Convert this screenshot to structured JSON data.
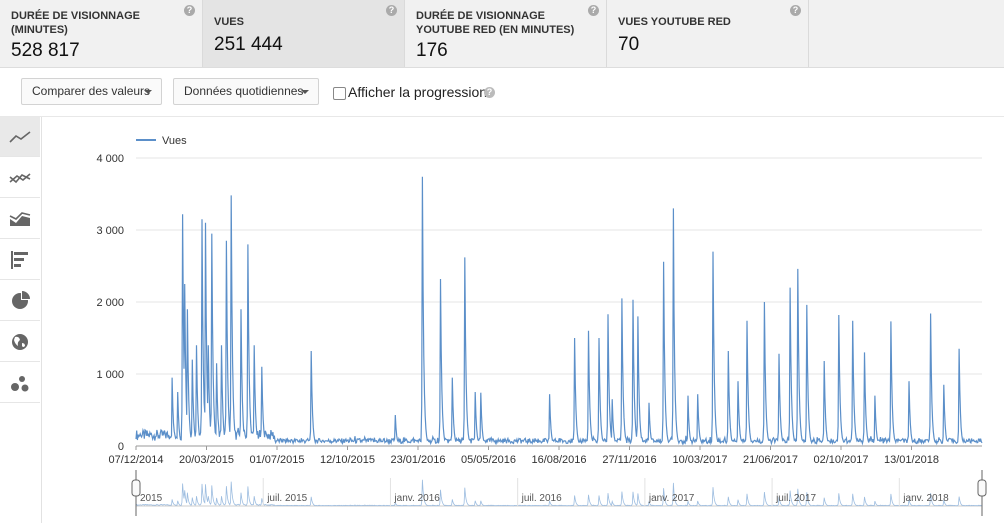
{
  "metrics": [
    {
      "label_line1": "DURÉE DE VISIONNAGE",
      "label_line2": "(MINUTES)",
      "value": "528 817"
    },
    {
      "label_line1": "VUES",
      "label_line2": "",
      "value": "251 444"
    },
    {
      "label_line1": "DURÉE DE VISIONNAGE",
      "label_line2": "YOUTUBE RED (EN MINUTES)",
      "value": "176"
    },
    {
      "label_line1": "VUES YOUTUBE RED",
      "label_line2": "",
      "value": "70"
    }
  ],
  "help_glyph": "?",
  "controls": {
    "compare_label": "Comparer des valeurs",
    "granularity_label": "Données quotidiennes",
    "progress_label": "Afficher la progression",
    "progress_checked": false
  },
  "side_icons": [
    "line-chart-icon",
    "multi-line-icon",
    "area-chart-icon",
    "bar-chart-icon",
    "pie-chart-icon",
    "globe-icon",
    "bubble-chart-icon"
  ],
  "colors": {
    "series": "#5b8fc9",
    "active_card": "#e4e4e4"
  },
  "chart_data": {
    "type": "line",
    "legend": "Vues",
    "ylim": [
      0,
      4000
    ],
    "yticks": [
      {
        "v": 0,
        "label": "0"
      },
      {
        "v": 1000,
        "label": "1 000"
      },
      {
        "v": 2000,
        "label": "2 000"
      },
      {
        "v": 3000,
        "label": "3 000"
      },
      {
        "v": 4000,
        "label": "4 000"
      }
    ],
    "xticks": [
      "07/12/2014",
      "20/03/2015",
      "01/07/2015",
      "12/10/2015",
      "23/01/2016",
      "05/05/2016",
      "16/08/2016",
      "27/11/2016",
      "10/03/2017",
      "21/06/2017",
      "02/10/2017",
      "13/01/2018"
    ],
    "x_start": "2014-12-07",
    "x_end": "2018-04-07",
    "baseline": 70,
    "peaks": [
      [
        "2015-01-28",
        950
      ],
      [
        "2015-02-05",
        750
      ],
      [
        "2015-02-12",
        3220
      ],
      [
        "2015-02-15",
        2250
      ],
      [
        "2015-02-19",
        1900
      ],
      [
        "2015-02-26",
        1200
      ],
      [
        "2015-03-04",
        1400
      ],
      [
        "2015-03-12",
        3150
      ],
      [
        "2015-03-17",
        3100
      ],
      [
        "2015-03-21",
        1400
      ],
      [
        "2015-03-26",
        2950
      ],
      [
        "2015-04-02",
        1150
      ],
      [
        "2015-04-09",
        1400
      ],
      [
        "2015-04-16",
        2850
      ],
      [
        "2015-04-23",
        3480
      ],
      [
        "2015-05-07",
        1900
      ],
      [
        "2015-05-17",
        2800
      ],
      [
        "2015-05-26",
        1400
      ],
      [
        "2015-06-06",
        1100
      ],
      [
        "2015-08-16",
        1320
      ],
      [
        "2015-12-15",
        430
      ],
      [
        "2016-01-23",
        3740
      ],
      [
        "2016-02-18",
        2320
      ],
      [
        "2016-03-06",
        950
      ],
      [
        "2016-03-24",
        2620
      ],
      [
        "2016-04-08",
        750
      ],
      [
        "2016-04-16",
        740
      ],
      [
        "2016-07-24",
        720
      ],
      [
        "2016-08-29",
        1500
      ],
      [
        "2016-09-18",
        1600
      ],
      [
        "2016-10-03",
        1500
      ],
      [
        "2016-10-16",
        1830
      ],
      [
        "2016-10-22",
        650
      ],
      [
        "2016-11-05",
        2050
      ],
      [
        "2016-11-21",
        2030
      ],
      [
        "2016-11-28",
        1800
      ],
      [
        "2016-12-14",
        600
      ],
      [
        "2017-01-04",
        2560
      ],
      [
        "2017-01-18",
        3300
      ],
      [
        "2017-02-08",
        700
      ],
      [
        "2017-02-22",
        720
      ],
      [
        "2017-03-16",
        2700
      ],
      [
        "2017-04-07",
        1320
      ],
      [
        "2017-04-21",
        900
      ],
      [
        "2017-05-04",
        1740
      ],
      [
        "2017-05-29",
        2000
      ],
      [
        "2017-06-19",
        1280
      ],
      [
        "2017-07-05",
        2200
      ],
      [
        "2017-07-16",
        2460
      ],
      [
        "2017-07-29",
        1960
      ],
      [
        "2017-08-23",
        1180
      ],
      [
        "2017-09-13",
        1820
      ],
      [
        "2017-10-03",
        1740
      ],
      [
        "2017-10-20",
        1300
      ],
      [
        "2017-11-04",
        700
      ],
      [
        "2017-11-27",
        1730
      ],
      [
        "2017-12-23",
        900
      ],
      [
        "2018-01-23",
        1840
      ],
      [
        "2018-02-11",
        850
      ],
      [
        "2018-03-05",
        1350
      ]
    ],
    "navigator_labels": [
      "2015",
      "juil. 2015",
      "janv. 2016",
      "juil. 2016",
      "janv. 2017",
      "juil. 2017",
      "janv. 2018"
    ]
  }
}
